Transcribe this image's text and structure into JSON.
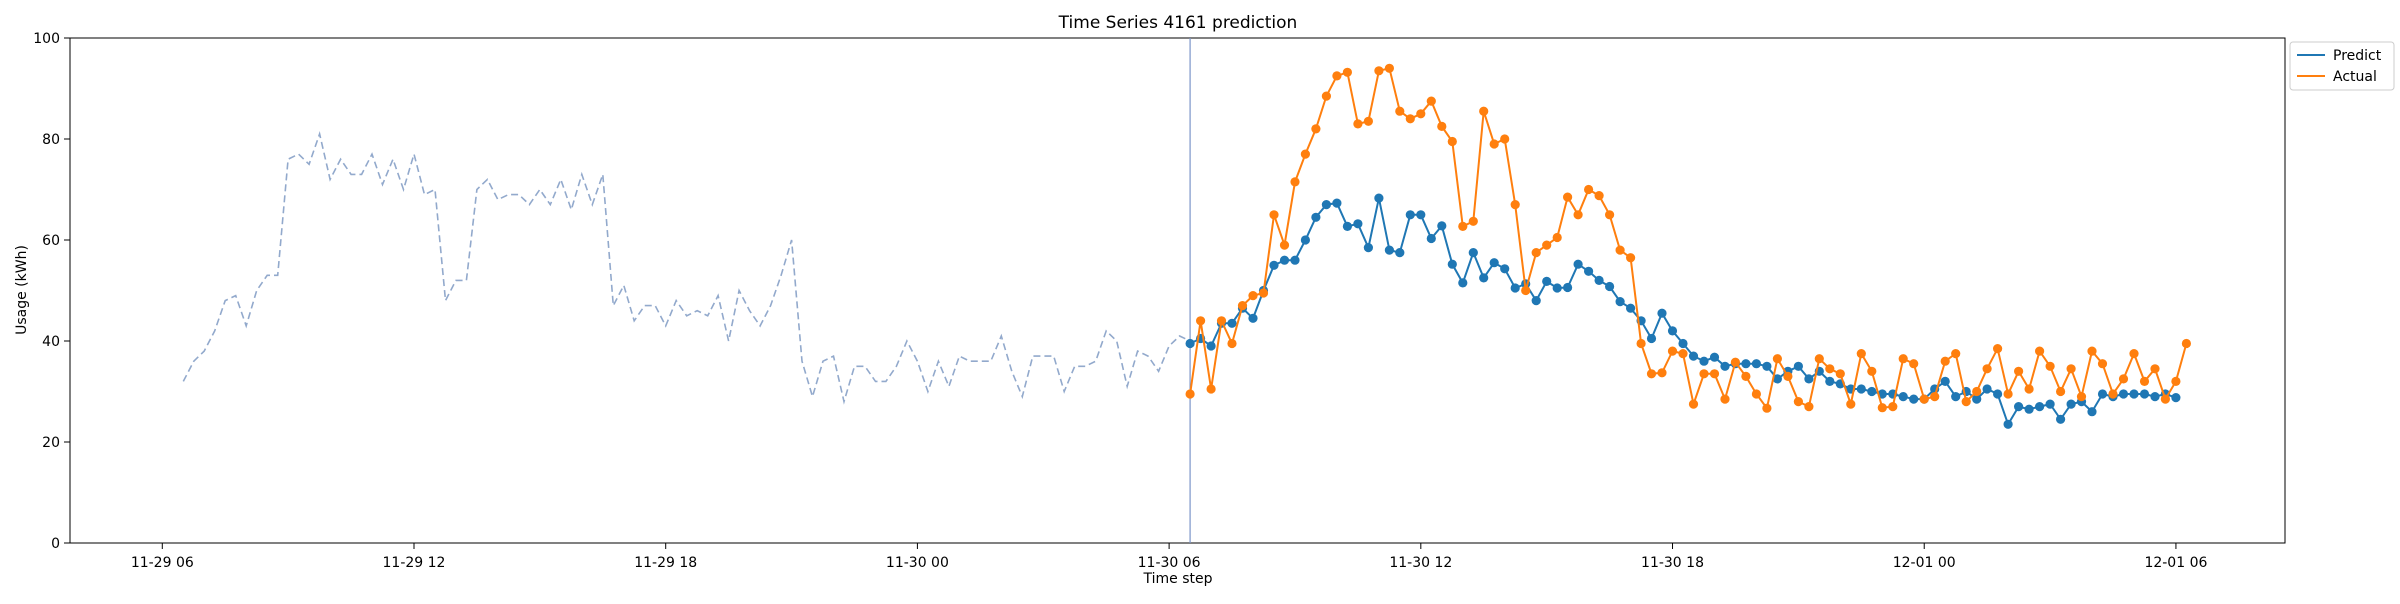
{
  "chart_data": {
    "type": "line",
    "title": "Time Series 4161 prediction",
    "xlabel": "Time step",
    "ylabel": "Usage (kWh)",
    "ylim": [
      0,
      100
    ],
    "xlim": [
      "2023-11-29T03:48",
      "2023-12-01T08:36"
    ],
    "grid": false,
    "legend_position": "top-right outside",
    "x_tick_labels": [
      "11-29 06",
      "11-29 12",
      "11-29 18",
      "11-30 00",
      "11-30 06",
      "11-30 12",
      "11-30 18",
      "12-01 00",
      "12-01 06"
    ],
    "y_tick_labels": [
      "0",
      "20",
      "40",
      "60",
      "80",
      "100"
    ],
    "forecast_start": "2023-11-30T06:30",
    "series": [
      {
        "label": "history",
        "style": "dashed",
        "color": "#92a9cc",
        "start": "2023-11-29T06:30",
        "interval_minutes": 15,
        "values": [
          32,
          36,
          38,
          42,
          48,
          49,
          43,
          50,
          53,
          53,
          76,
          77,
          75,
          81,
          72,
          76,
          73,
          73,
          77,
          71,
          76,
          70,
          77,
          69,
          70,
          48,
          52,
          52,
          70,
          72,
          68,
          69,
          69,
          67,
          70,
          67,
          72,
          66,
          73,
          67,
          73,
          47,
          51,
          44,
          47,
          47,
          43,
          48,
          45,
          46,
          45,
          49,
          40,
          50,
          46,
          43,
          47,
          53,
          60,
          36,
          29,
          36,
          37,
          28,
          35,
          35,
          32,
          32,
          35,
          40,
          36,
          30,
          36,
          31,
          37,
          36,
          36,
          36,
          41,
          34,
          29,
          37,
          37,
          37,
          30,
          35,
          35,
          36,
          42,
          40,
          31,
          38,
          37,
          34,
          39,
          41,
          40
        ]
      },
      {
        "name": "Predict",
        "color": "#1f77b4",
        "start": "2023-11-30T06:30",
        "interval_minutes": 15,
        "values": [
          39.5,
          40.5,
          39,
          43.5,
          43.5,
          46.5,
          44.5,
          50,
          55,
          56,
          56,
          60,
          64.5,
          67,
          67.3,
          62.7,
          63.2,
          58.5,
          68.3,
          58,
          57.5,
          65,
          65,
          60.3,
          62.8,
          55.2,
          51.5,
          57.5,
          52.5,
          55.5,
          54.3,
          50.5,
          51.3,
          48,
          51.8,
          50.5,
          50.6,
          55.2,
          53.8,
          52,
          50.8,
          47.8,
          46.5,
          44,
          40.5,
          45.5,
          42,
          39.5,
          37,
          36,
          36.8,
          35,
          35.5,
          35.5,
          35.5,
          35,
          32.5,
          34,
          35,
          32.5,
          34,
          32,
          31.5,
          30.5,
          30.5,
          30,
          29.5,
          29.5,
          29,
          28.5,
          28.5,
          30.5,
          32,
          29,
          30,
          28.5,
          30.5,
          29.5,
          23.5,
          27,
          26.5,
          27,
          27.5,
          24.5,
          27.5,
          28,
          26,
          29.5,
          29,
          29.5,
          29.5,
          29.5,
          29,
          29.5,
          28.8
        ]
      },
      {
        "name": "Actual",
        "color": "#ff7f0e",
        "start": "2023-11-30T06:30",
        "interval_minutes": 15,
        "values": [
          29.5,
          44,
          30.5,
          44,
          39.5,
          47,
          49,
          49.5,
          65,
          59,
          71.5,
          77,
          82,
          88.5,
          92.5,
          93.2,
          83,
          83.5,
          93.5,
          94,
          85.5,
          84,
          85,
          87.5,
          82.5,
          79.5,
          62.7,
          63.7,
          85.5,
          79,
          80,
          67,
          50,
          57.5,
          59,
          60.5,
          68.5,
          65,
          70,
          68.8,
          65,
          58,
          56.5,
          39.5,
          33.5,
          33.7,
          38,
          37.5,
          27.5,
          33.5,
          33.5,
          28.5,
          35.8,
          33,
          29.5,
          26.7,
          36.5,
          33,
          28,
          27,
          36.5,
          34.5,
          33.5,
          27.5,
          37.5,
          34,
          26.8,
          27,
          36.5,
          35.5,
          28.5,
          29,
          36,
          37.5,
          28,
          30,
          34.5,
          38.5,
          29.5,
          34,
          30.5,
          38,
          35,
          30,
          34.5,
          29,
          38,
          35.5,
          29.5,
          32.5,
          37.5,
          32,
          34.5,
          28.5,
          32,
          39.5
        ]
      }
    ]
  }
}
